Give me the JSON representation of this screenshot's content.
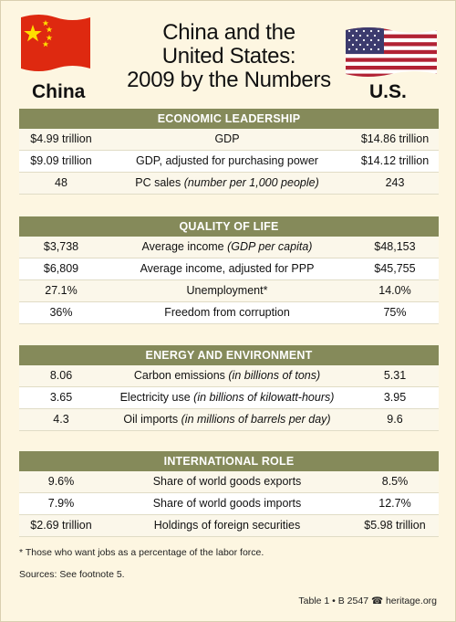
{
  "header": {
    "title_line1": "China and the",
    "title_line2": "United States:",
    "title_line3": "2009 by the Numbers",
    "left_country": "China",
    "right_country": "U.S."
  },
  "sections": [
    {
      "title": "ECONOMIC LEADERSHIP",
      "rows": [
        {
          "china": "$4.99 trillion",
          "label": "GDP",
          "note": "",
          "us": "$14.86 trillion"
        },
        {
          "china": "$9.09 trillion",
          "label": "GDP,  adjusted for purchasing power",
          "note": "",
          "us": "$14.12 trillion"
        },
        {
          "china": "48",
          "label": "PC sales",
          "note": "(number per 1,000 people)",
          "us": "243"
        }
      ]
    },
    {
      "title": "QUALITY OF LIFE",
      "rows": [
        {
          "china": "$3,738",
          "label": "Average income",
          "note": "(GDP per capita)",
          "us": "$48,153"
        },
        {
          "china": "$6,809",
          "label": "Average income, adjusted for PPP",
          "note": "",
          "us": "$45,755"
        },
        {
          "china": "27.1%",
          "label": "Unemployment*",
          "note": "",
          "us": "14.0%"
        },
        {
          "china": "36%",
          "label": "Freedom from corruption",
          "note": "",
          "us": "75%"
        }
      ]
    },
    {
      "title": "ENERGY AND ENVIRONMENT",
      "rows": [
        {
          "china": "8.06",
          "label": "Carbon emissions",
          "note": "(in billions of tons)",
          "us": "5.31"
        },
        {
          "china": "3.65",
          "label": "Electricity use",
          "note": "(in billions of kilowatt-hours)",
          "us": "3.95"
        },
        {
          "china": "4.3",
          "label": "Oil imports",
          "note": "(in millions of barrels per day)",
          "us": "9.6"
        }
      ]
    },
    {
      "title": "INTERNATIONAL ROLE",
      "rows": [
        {
          "china": "9.6%",
          "label": "Share of world goods exports",
          "note": "",
          "us": "8.5%"
        },
        {
          "china": "7.9%",
          "label": "Share of world goods imports",
          "note": "",
          "us": "12.7%"
        },
        {
          "china": "$2.69 trillion",
          "label": "Holdings of foreign securities",
          "note": "",
          "us": "$5.98 trillion"
        }
      ]
    }
  ],
  "footnote": "* Those who want jobs as a percentage of the labor force.",
  "sources": "Sources: See footnote 5.",
  "credit": "Table 1 • B 2547 ☎ heritage.org",
  "colors": {
    "background": "#fdf6e1",
    "section_header": "#858a5a",
    "china_flag_red": "#de2910",
    "china_flag_star": "#ffde00",
    "us_flag_red": "#b22234",
    "us_flag_blue": "#3c3b6e"
  }
}
